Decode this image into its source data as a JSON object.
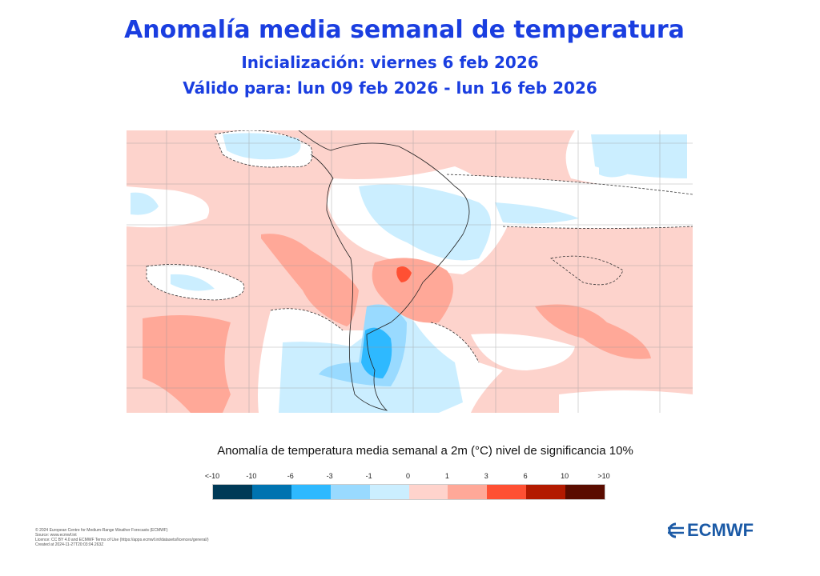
{
  "header": {
    "title": "Anomalía  media semanal de temperatura",
    "init": "Inicialización: viernes 6 feb 2026",
    "valid": "Válido para: lun 09 feb 2026 - lun 16 feb 2026"
  },
  "map": {
    "region": "South America",
    "variable": "2m temperature weekly mean anomaly"
  },
  "colorbar": {
    "title": "Anomalía de temperatura media semanal a 2m (°C) nivel de significancia 10%",
    "ticks": [
      "<-10",
      "-10",
      "-6",
      "-3",
      "-1",
      "0",
      "1",
      "3",
      "6",
      "10",
      ">10"
    ],
    "colors": [
      "#003a57",
      "#0073b0",
      "#2eb9ff",
      "#99daff",
      "#cbeeff",
      "#ffd3cc",
      "#ffa898",
      "#ff5033",
      "#b31a00",
      "#5a0c00"
    ]
  },
  "footer": {
    "lines": [
      "© 2024 European Centre for Medium-Range Weather Forecasts (ECMWF)",
      "Source: www.ecmwf.int",
      "Licence: CC BY 4.0 and ECMWF Terms of Use (https://apps.ecmwf.int/datasets/licences/general/)",
      "Created at 2024-11-27T20:03:04.263Z"
    ]
  },
  "logo": {
    "text": "ECMWF"
  }
}
